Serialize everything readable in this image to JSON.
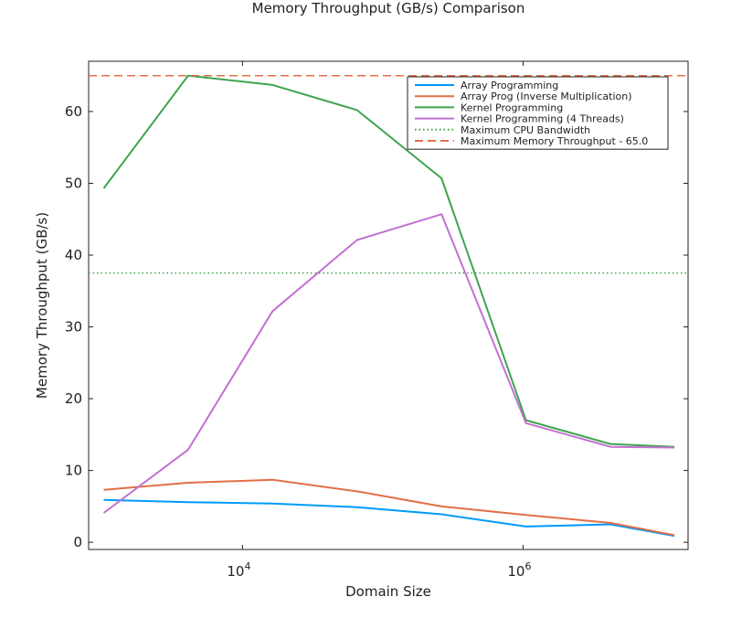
{
  "chart_data": {
    "type": "line",
    "title": "Memory Throughput (GB/s) Comparison",
    "xlabel": "Domain Size",
    "ylabel": "Memory Throughput (GB/s)",
    "xscale": "log10",
    "xlim": [
      800,
      15000000
    ],
    "ylim": [
      -1,
      67
    ],
    "yticks": [
      0,
      10,
      20,
      30,
      40,
      50,
      60
    ],
    "xticks": [
      {
        "value": 10000,
        "base": "10",
        "exp": "4"
      },
      {
        "value": 1000000,
        "base": "10",
        "exp": "6"
      }
    ],
    "grid": false,
    "legend_position": "top-right",
    "x": [
      1024,
      4096,
      16384,
      65536,
      262144,
      1048576,
      4194304,
      12000000
    ],
    "series": [
      {
        "name": "Array Programming",
        "color": "#009AFA",
        "style": "solid",
        "values": [
          5.9,
          5.6,
          5.4,
          4.9,
          3.9,
          2.2,
          2.5,
          0.9
        ]
      },
      {
        "name": "Array Prog (Inverse Multiplication)",
        "color": "#E26F46",
        "style": "solid",
        "values": [
          7.3,
          8.3,
          8.7,
          7.1,
          5.0,
          3.8,
          2.7,
          1.0
        ]
      },
      {
        "name": "Kernel Programming",
        "color": "#3EA44E",
        "style": "solid",
        "values": [
          49.3,
          65.0,
          63.7,
          60.2,
          50.7,
          17.0,
          13.7,
          13.3
        ]
      },
      {
        "name": "Kernel Programming (4 Threads)",
        "color": "#C271D2",
        "style": "solid",
        "values": [
          4.1,
          12.9,
          32.2,
          42.1,
          45.7,
          16.6,
          13.3,
          13.2
        ]
      },
      {
        "name": "Maximum CPU Bandwidth",
        "color": "#3EA44E",
        "style": "dotted",
        "hline": 37.5
      },
      {
        "name": "Maximum Memory Throughput - 65.0",
        "color": "#E26F46",
        "style": "dashed",
        "hline": 65.0
      }
    ]
  }
}
